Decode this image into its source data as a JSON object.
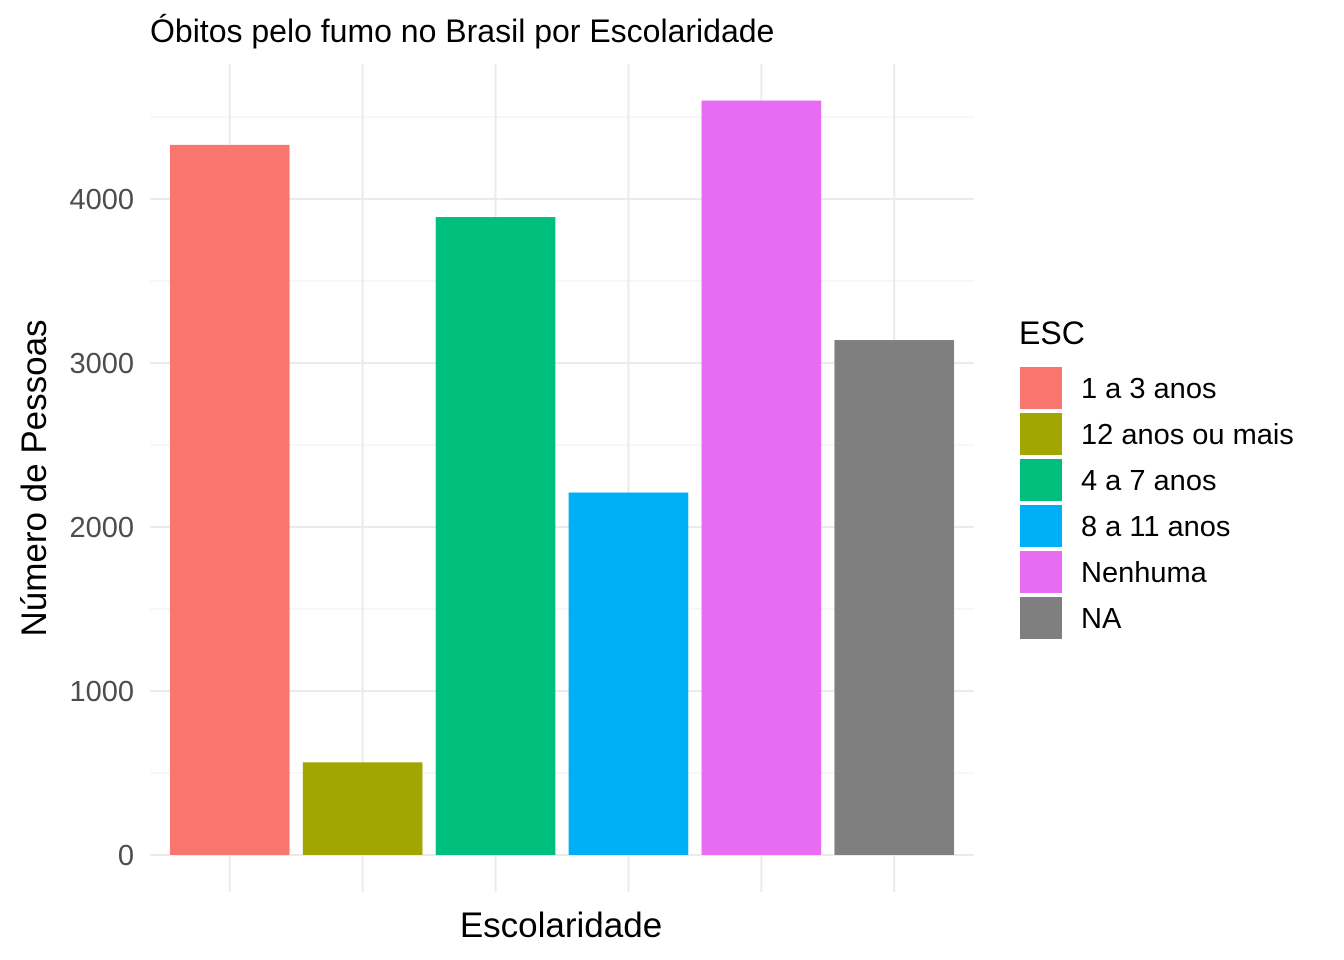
{
  "chart_data": {
    "type": "bar",
    "title": "Óbitos pelo fumo no Brasil por Escolaridade",
    "xlabel": "Escolaridade",
    "ylabel": "Número de Pessoas",
    "categories": [
      "1 a 3 anos",
      "12 anos ou mais",
      "4 a 7 anos",
      "8 a 11 anos",
      "Nenhuma",
      "NA"
    ],
    "values": [
      4330,
      565,
      3890,
      2210,
      4600,
      3140
    ],
    "colors": [
      "#F8766D",
      "#A3A500",
      "#00BF7D",
      "#00B0F6",
      "#E76BF3",
      "#7F7F7F"
    ],
    "ylim": [
      0,
      4600
    ],
    "yticks": [
      0,
      1000,
      2000,
      3000,
      4000
    ],
    "xticks_labeled": false,
    "grid": true,
    "legend": {
      "title": "ESC",
      "placement": "right",
      "entries": [
        "1 a 3 anos",
        "12 anos ou mais",
        "4 a 7 anos",
        "8 a 11 anos",
        "Nenhuma",
        "NA"
      ]
    }
  }
}
